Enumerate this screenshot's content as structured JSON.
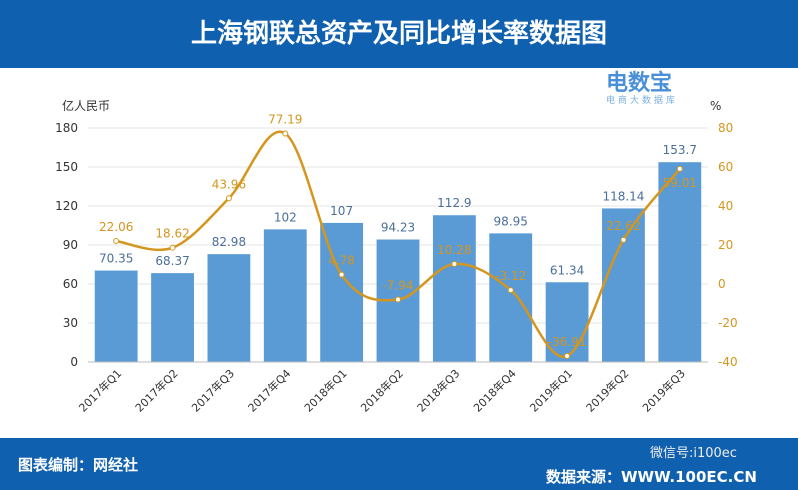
{
  "title": "上海钢联总资产及同比增长率数据图",
  "footer": {
    "left": "图表编制：网经社",
    "right": "数据来源：WWW.100EC.CN",
    "watermark": "微信号:i100ec"
  },
  "logo": {
    "name": "电数宝",
    "sub": "电商大数据库",
    "mark": "eDT"
  },
  "chart_data": {
    "type": "bar+line",
    "categories": [
      "2017年Q1",
      "2017年Q2",
      "2017年Q3",
      "2017年Q4",
      "2018年Q1",
      "2018年Q2",
      "2018年Q3",
      "2018年Q4",
      "2019年Q1",
      "2019年Q2",
      "2019年Q3"
    ],
    "series": [
      {
        "name": "总资产",
        "unit": "亿人民币",
        "type": "bar",
        "color": "#5b9bd5",
        "values": [
          70.35,
          68.37,
          82.98,
          102,
          107,
          94.23,
          112.9,
          98.95,
          61.34,
          118.14,
          153.7
        ],
        "labels": [
          "70.35",
          "68.37",
          "82.98",
          "102",
          "107",
          "94.23",
          "112.9",
          "98.95",
          "61.34",
          "118.14",
          "153.7"
        ]
      },
      {
        "name": "同比增长率",
        "unit": "%",
        "type": "line",
        "color": "#d4961e",
        "values": [
          22.06,
          18.62,
          43.96,
          77.19,
          4.78,
          -7.94,
          10.28,
          -3.12,
          -36.91,
          22.62,
          59.01
        ],
        "labels": [
          "22.06",
          "18.62",
          "43.96",
          "77.19",
          "4.78",
          "-7.94",
          "10.28",
          "-3.12",
          "-36.91",
          "22.62",
          "59.01"
        ]
      }
    ],
    "ylabel": "亿人民币",
    "y2label": "%",
    "ylim": [
      0,
      180
    ],
    "yticks": [
      0,
      30,
      60,
      90,
      120,
      150,
      180
    ],
    "y2lim": [
      -40,
      80
    ],
    "y2ticks": [
      -40,
      -20,
      0,
      20,
      40,
      60,
      80
    ]
  }
}
